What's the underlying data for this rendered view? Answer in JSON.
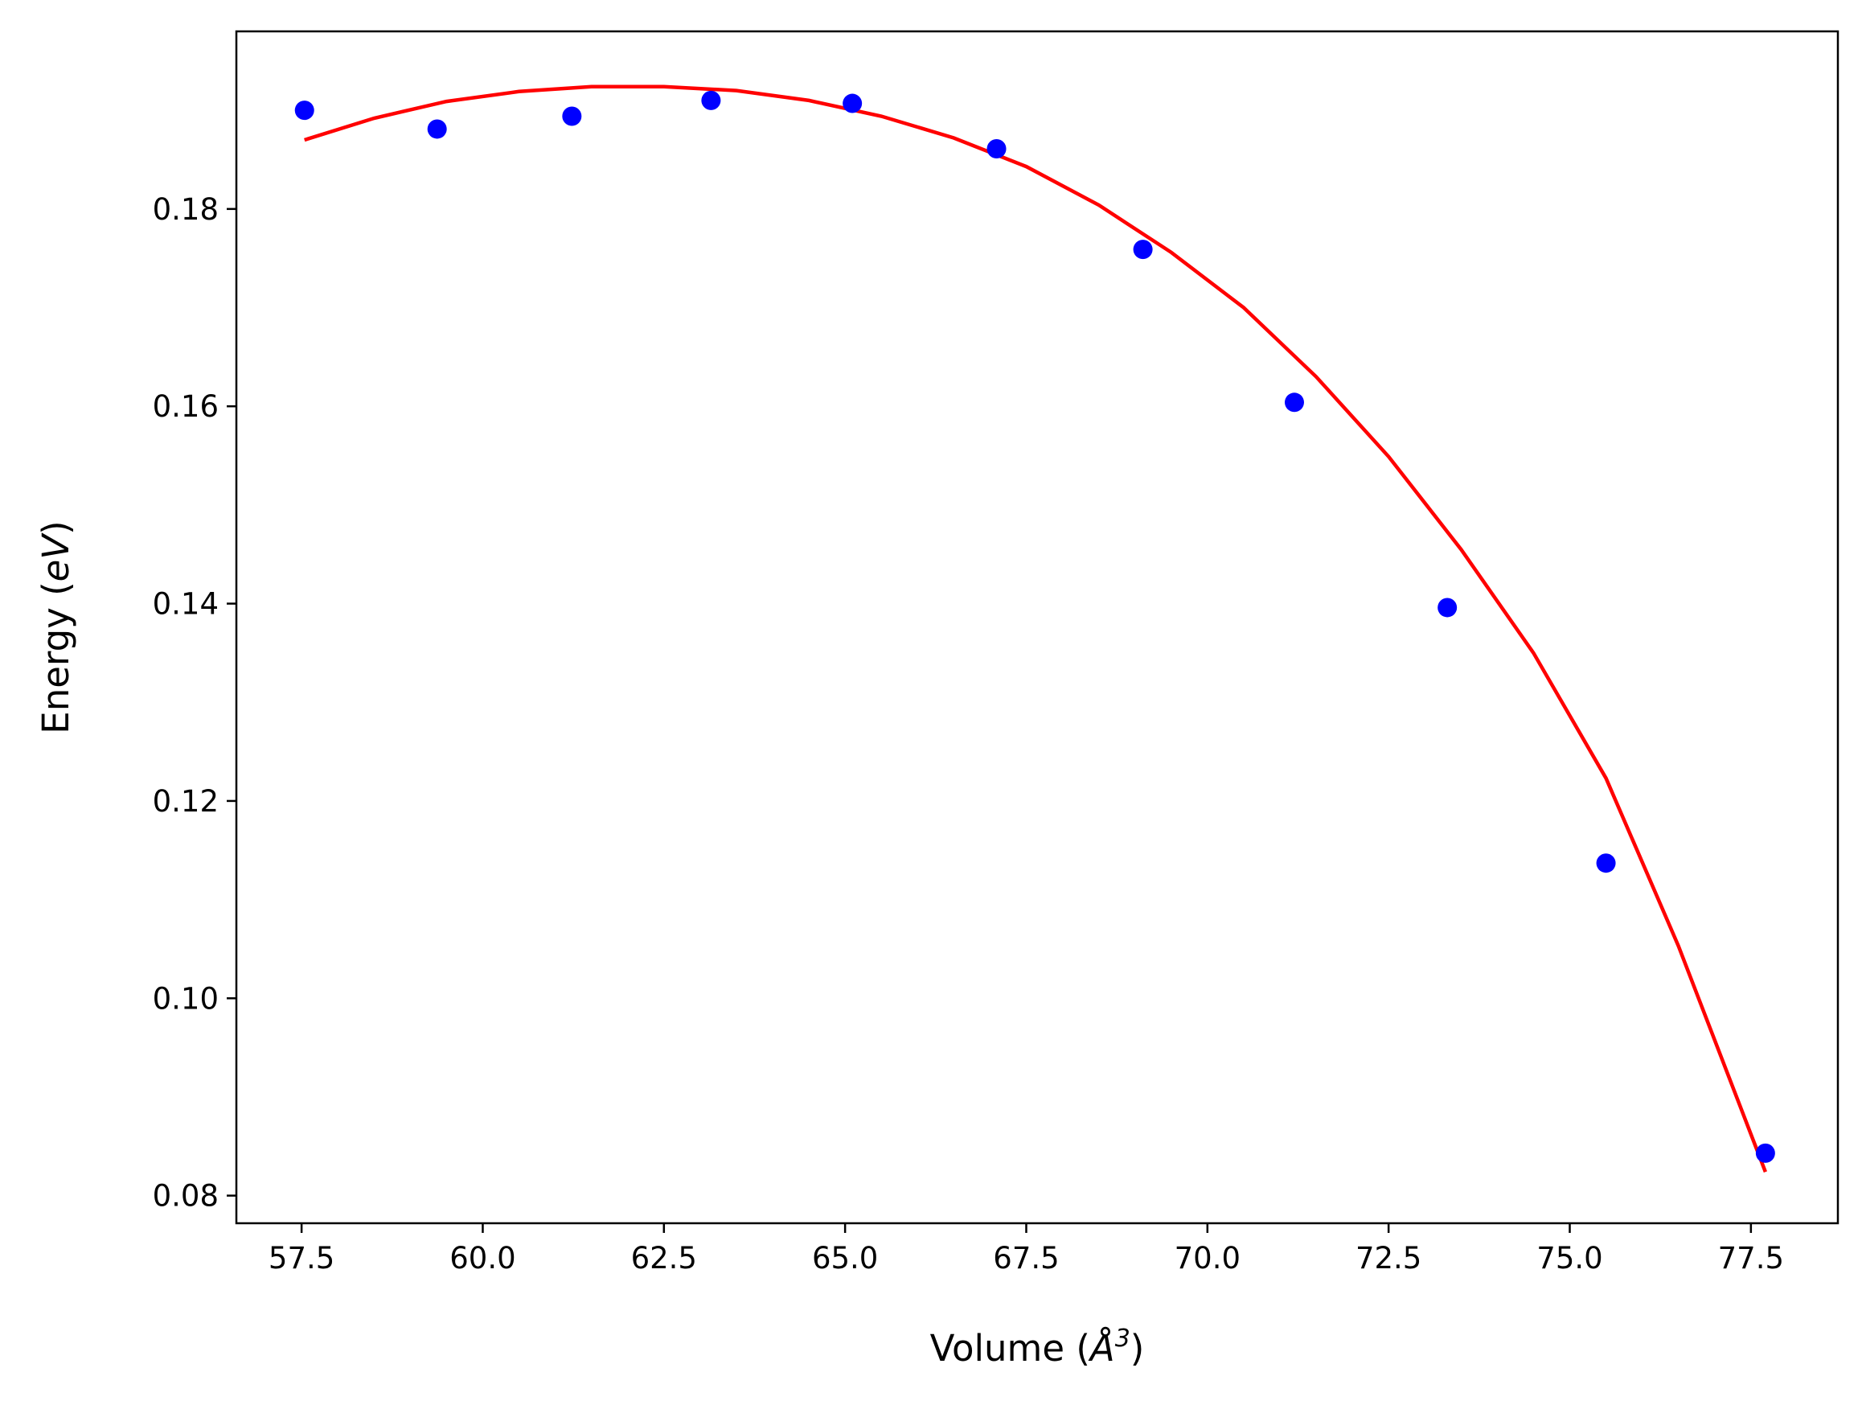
{
  "chart_data": {
    "type": "scatter",
    "title": "",
    "xlabel": "Volume (",
    "xlabel_symbol": "Å",
    "xlabel_exp": "3",
    "xlabel_close": ")",
    "ylabel": "Energy (",
    "ylabel_unit": "eV",
    "ylabel_close": ")",
    "xlim": [
      56.6,
      78.7
    ],
    "ylim": [
      0.0772,
      0.198
    ],
    "x_ticks": [
      57.5,
      60.0,
      62.5,
      65.0,
      67.5,
      70.0,
      72.5,
      75.0,
      77.5
    ],
    "x_tick_labels": [
      "57.5",
      "60.0",
      "62.5",
      "65.0",
      "67.5",
      "70.0",
      "72.5",
      "75.0",
      "77.5"
    ],
    "y_ticks": [
      0.08,
      0.1,
      0.12,
      0.14,
      0.16,
      0.18
    ],
    "y_tick_labels": [
      "0.08",
      "0.10",
      "0.12",
      "0.14",
      "0.16",
      "0.18"
    ],
    "grid": false,
    "series": [
      {
        "type": "scatter",
        "color": "#0000ff",
        "x": [
          57.54,
          59.37,
          61.23,
          63.15,
          65.1,
          67.09,
          69.11,
          71.2,
          73.31,
          75.5,
          77.7
        ],
        "y": [
          0.19,
          0.1881,
          0.1894,
          0.191,
          0.1907,
          0.1861,
          0.1759,
          0.1604,
          0.1396,
          0.1137,
          0.0843
        ]
      },
      {
        "type": "line",
        "color": "#ff0000",
        "x": [
          57.54,
          58.5,
          59.5,
          60.5,
          61.5,
          62.5,
          63.5,
          64.5,
          65.5,
          66.5,
          67.5,
          68.5,
          69.5,
          70.5,
          71.5,
          72.5,
          73.5,
          74.5,
          75.5,
          76.5,
          77.7
        ],
        "y": [
          0.187,
          0.1892,
          0.1909,
          0.1919,
          0.1924,
          0.1924,
          0.192,
          0.191,
          0.1894,
          0.1872,
          0.1843,
          0.1804,
          0.1756,
          0.17,
          0.163,
          0.1549,
          0.1455,
          0.135,
          0.1223,
          0.1053,
          0.0824
        ]
      }
    ]
  }
}
